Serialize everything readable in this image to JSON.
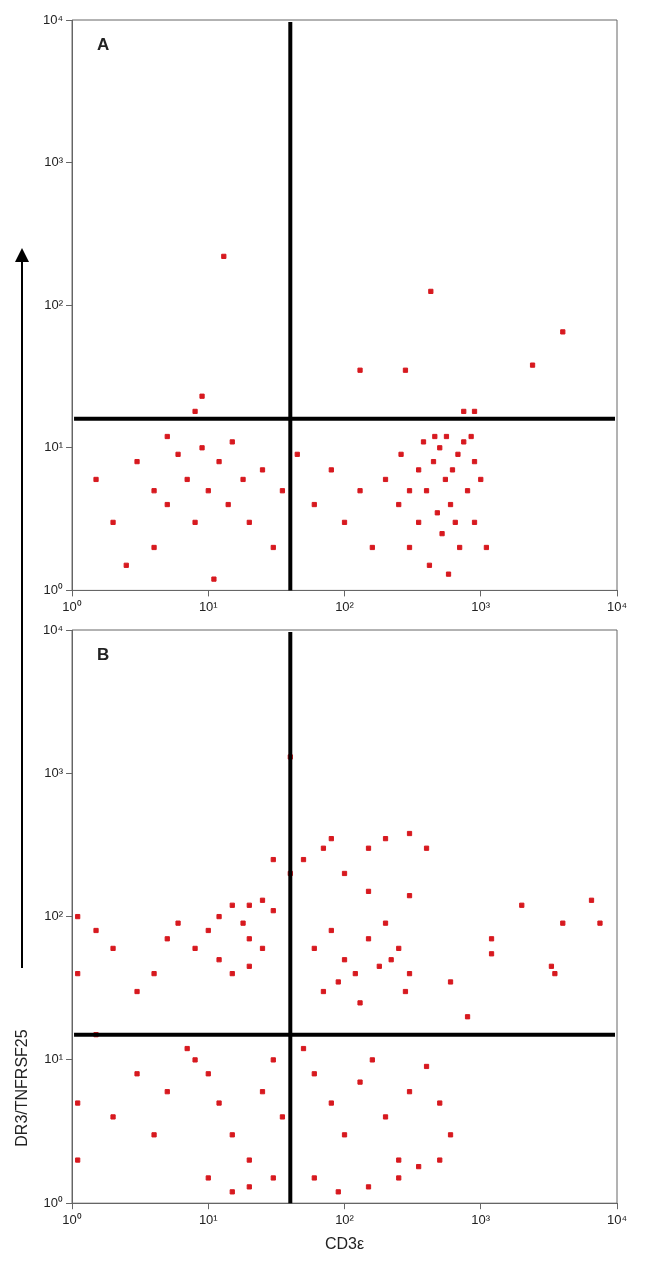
{
  "chart_data": [
    {
      "type": "scatter",
      "title": "A",
      "log": "xy",
      "grid": false,
      "marker": "square",
      "xlim": [
        1,
        10000
      ],
      "ylim": [
        1,
        10000
      ],
      "xticks": [
        {
          "value": 1,
          "label": "10⁰"
        },
        {
          "value": 10,
          "label": "10¹"
        },
        {
          "value": 100,
          "label": "10²"
        },
        {
          "value": 1000,
          "label": "10³"
        },
        {
          "value": 10000,
          "label": "10⁴"
        }
      ],
      "yticks": [
        {
          "value": 1,
          "label": "10⁰"
        },
        {
          "value": 10,
          "label": "10¹"
        },
        {
          "value": 100,
          "label": "10²"
        },
        {
          "value": 1000,
          "label": "10³"
        },
        {
          "value": 10000,
          "label": "10⁴"
        }
      ],
      "ref_lines": [
        {
          "axis": "x",
          "value": 40,
          "color": "#000000"
        },
        {
          "axis": "y",
          "value": 16,
          "color": "#000000"
        }
      ],
      "series": [
        {
          "color": "#d7191f",
          "x": [
            300,
            350,
            400,
            450,
            500,
            550,
            600,
            650,
            700,
            800,
            900,
            750,
            420,
            480,
            520,
            580,
            620,
            680,
            350,
            300,
            250,
            900,
            1000,
            1100,
            380,
            460,
            560,
            850,
            200,
            260,
            1.5,
            2,
            3,
            4,
            5,
            6,
            7,
            8,
            10,
            12,
            14,
            15,
            18,
            20,
            25,
            30,
            35,
            5,
            9,
            4,
            2.5,
            11,
            45,
            60,
            80,
            100,
            130,
            160,
            13,
            430,
            4000,
            2400,
            130,
            280,
            9,
            8,
            750,
            900
          ],
          "values": [
            2,
            3,
            5,
            8,
            10,
            6,
            4,
            3,
            2,
            5,
            8,
            11,
            1.5,
            3.5,
            2.5,
            1.3,
            7,
            9,
            7,
            5,
            4,
            3,
            6,
            2,
            11,
            12,
            12,
            12,
            6,
            9,
            6,
            3,
            8,
            5,
            4,
            9,
            6,
            3,
            5,
            8,
            4,
            11,
            6,
            3,
            7,
            2,
            5,
            12,
            10,
            2,
            1.5,
            1.2,
            9,
            4,
            7,
            3,
            5,
            2,
            220,
            125,
            65,
            38,
            35,
            35,
            23,
            18,
            18,
            18
          ]
        }
      ]
    },
    {
      "type": "scatter",
      "title": "B",
      "xlabel": "CD3ε",
      "ylabel": "DR3/TNFRSF25",
      "log": "xy",
      "grid": false,
      "marker": "square",
      "xlim": [
        1,
        10000
      ],
      "ylim": [
        1,
        10000
      ],
      "xticks": [
        {
          "value": 1,
          "label": "10⁰"
        },
        {
          "value": 10,
          "label": "10¹"
        },
        {
          "value": 100,
          "label": "10²"
        },
        {
          "value": 1000,
          "label": "10³"
        },
        {
          "value": 10000,
          "label": "10⁴"
        }
      ],
      "yticks": [
        {
          "value": 1,
          "label": "10⁰"
        },
        {
          "value": 10,
          "label": "10¹"
        },
        {
          "value": 100,
          "label": "10²"
        },
        {
          "value": 1000,
          "label": "10³"
        },
        {
          "value": 10000,
          "label": "10⁴"
        }
      ],
      "ref_lines": [
        {
          "axis": "x",
          "value": 40,
          "color": "#000000"
        },
        {
          "axis": "y",
          "value": 15,
          "color": "#000000"
        }
      ],
      "series": [
        {
          "color": "#d7191f",
          "x": [
            10,
            12,
            15,
            18,
            20,
            25,
            30,
            12,
            15,
            20,
            25,
            8,
            6,
            5,
            4,
            3,
            2,
            1.5,
            60,
            80,
            100,
            120,
            150,
            200,
            250,
            300,
            70,
            90,
            130,
            180,
            220,
            280,
            8,
            10,
            12,
            15,
            20,
            25,
            30,
            35,
            50,
            60,
            80,
            100,
            130,
            160,
            200,
            250,
            300,
            400,
            500,
            600,
            10,
            15,
            20,
            30,
            60,
            90,
            150,
            250,
            350,
            500,
            7,
            5,
            4,
            3,
            2,
            1.5,
            1.1,
            1.1,
            1.1,
            1.1,
            40,
            50,
            70,
            100,
            150,
            200,
            300,
            400,
            40,
            800,
            1200,
            2000,
            3300,
            4000,
            6500,
            7500,
            1200,
            3500,
            600,
            300,
            150,
            80,
            30,
            20
          ],
          "values": [
            80,
            100,
            120,
            90,
            70,
            60,
            110,
            50,
            40,
            45,
            130,
            60,
            90,
            70,
            40,
            30,
            60,
            80,
            60,
            80,
            50,
            40,
            70,
            90,
            60,
            40,
            30,
            35,
            25,
            45,
            50,
            30,
            10,
            8,
            5,
            3,
            2,
            6,
            10,
            4,
            12,
            8,
            5,
            3,
            7,
            10,
            4,
            2,
            6,
            9,
            5,
            3,
            1.5,
            1.2,
            1.3,
            1.5,
            1.5,
            1.2,
            1.3,
            1.5,
            1.8,
            2,
            12,
            6,
            3,
            8,
            4,
            15,
            100,
            40,
            5,
            2,
            200,
            250,
            300,
            200,
            150,
            350,
            380,
            300,
            1300,
            20,
            70,
            120,
            45,
            90,
            130,
            90,
            55,
            40,
            35,
            140,
            300,
            350,
            250,
            120
          ]
        }
      ]
    }
  ]
}
